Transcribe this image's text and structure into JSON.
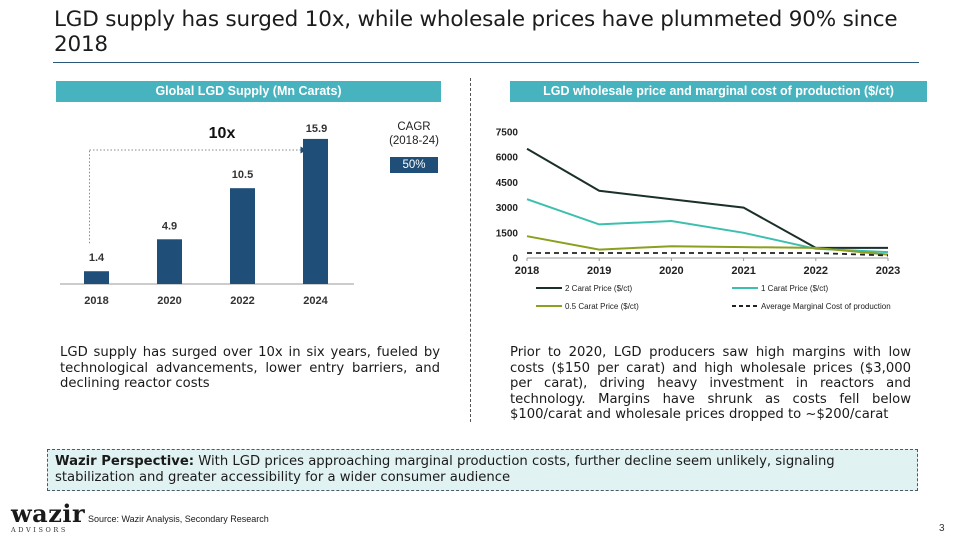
{
  "slide": {
    "title": "LGD supply has surged 10x, while wholesale prices have plummeted 90% since 2018",
    "page_number": "3",
    "source": "Source: Wazir Analysis, Secondary Research",
    "logo_main": "wazir",
    "logo_sub": "ADVISORS"
  },
  "left_panel": {
    "header": "Global LGD Supply (Mn Carats)",
    "growth_label": "10x",
    "cagr_label": "CAGR (2018-24)",
    "cagr_value": "50%",
    "description": "LGD supply has surged over 10x in six years, fueled by technological advancements, lower entry barriers, and declining reactor costs"
  },
  "right_panel": {
    "header": "LGD wholesale price and marginal cost of production ($/ct)",
    "description": "Prior to 2020, LGD producers saw high margins with low costs ($150 per carat) and high wholesale prices ($3,000 per carat), driving heavy investment in reactors and technology. Margins have shrunk as costs fell below $100/carat and wholesale prices dropped to ~$200/carat"
  },
  "perspective": {
    "label": "Wazir Perspective:",
    "text": " With LGD prices approaching marginal production costs, further decline seem unlikely, signaling stabilization and greater accessibility for a wider consumer audience"
  },
  "chart_data": [
    {
      "type": "bar",
      "title": "Global LGD Supply (Mn Carats)",
      "categories": [
        "2018",
        "2020",
        "2022",
        "2024"
      ],
      "values": [
        1.4,
        4.9,
        10.5,
        15.9
      ],
      "value_labels": [
        "1.4",
        "4.9",
        "10.5",
        "15.9"
      ],
      "color": "#1f4e79",
      "ylim": [
        0,
        16
      ],
      "grid": false
    },
    {
      "type": "line",
      "title": "LGD wholesale price and marginal cost of production ($/ct)",
      "x": [
        "2018",
        "2019",
        "2020",
        "2021",
        "2022",
        "2023"
      ],
      "yticks": [
        0,
        1500,
        3000,
        4500,
        6000,
        7500
      ],
      "ytick_labels": [
        "0",
        "1500",
        "3000",
        "4500",
        "6000",
        "7500"
      ],
      "ylim": [
        0,
        7500
      ],
      "grid": false,
      "legend_position": "bottom",
      "series": [
        {
          "name": "2 Carat Price ($/ct)",
          "values": [
            6500,
            4000,
            3500,
            3000,
            600,
            600
          ],
          "color": "#1b2f2b",
          "dash": false
        },
        {
          "name": "1 Carat Price ($/ct)",
          "values": [
            3500,
            2000,
            2200,
            1500,
            550,
            350
          ],
          "color": "#3cbfae",
          "dash": false
        },
        {
          "name": "0.5 Carat Price ($/ct)",
          "values": [
            1300,
            500,
            700,
            650,
            600,
            200
          ],
          "color": "#8c9f1e",
          "dash": false
        },
        {
          "name": "Average Marginal Cost of production",
          "values": [
            300,
            300,
            300,
            300,
            300,
            150
          ],
          "color": "#222222",
          "dash": true
        }
      ]
    }
  ]
}
